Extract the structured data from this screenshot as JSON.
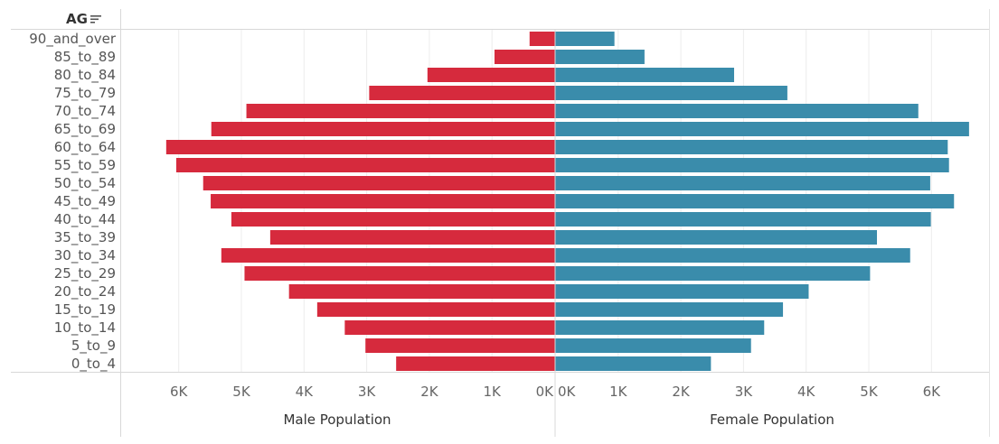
{
  "header": {
    "label": "AG"
  },
  "colors": {
    "male": "#d62a3d",
    "female": "#3a8cab"
  },
  "chart_data": {
    "type": "bar",
    "categories": [
      "90_and_over",
      "85_to_89",
      "80_to_84",
      "75_to_79",
      "70_to_74",
      "65_to_69",
      "60_to_64",
      "55_to_59",
      "50_to_54",
      "45_to_49",
      "40_to_44",
      "35_to_39",
      "30_to_34",
      "25_to_29",
      "20_to_24",
      "15_to_19",
      "10_to_14",
      "5_to_9",
      "0_to_4"
    ],
    "series": [
      {
        "name": "Male Population",
        "values": [
          400,
          960,
          2030,
          2960,
          4920,
          5480,
          6200,
          6040,
          5610,
          5490,
          5160,
          4540,
          5320,
          4950,
          4240,
          3790,
          3350,
          3020,
          2530
        ]
      },
      {
        "name": "Female Population",
        "values": [
          940,
          1420,
          2850,
          3700,
          5790,
          6600,
          6260,
          6280,
          5980,
          6360,
          5990,
          5130,
          5660,
          5020,
          4040,
          3630,
          3330,
          3120,
          2480
        ]
      }
    ],
    "male_axis": {
      "title": "Male Population",
      "ticks": [
        "6K",
        "5K",
        "4K",
        "3K",
        "2K",
        "1K",
        "0K"
      ],
      "tick_values": [
        6000,
        5000,
        4000,
        3000,
        2000,
        1000,
        0
      ]
    },
    "female_axis": {
      "title": "Female Population",
      "ticks": [
        "0K",
        "1K",
        "2K",
        "3K",
        "4K",
        "5K",
        "6K"
      ],
      "tick_values": [
        0,
        1000,
        2000,
        3000,
        4000,
        5000,
        6000
      ]
    },
    "grid": true
  }
}
